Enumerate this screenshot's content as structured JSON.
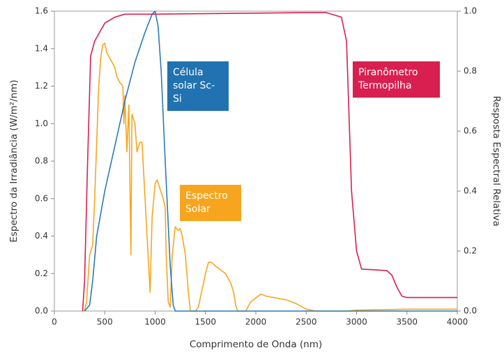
{
  "chart_data": {
    "type": "line",
    "xlabel": "Comprimento de Onda (nm)",
    "ylabel": "Espectro da Irradiância (W/m²/nm)",
    "y2label": "Resposta Espectral Relativa",
    "xlim": [
      0,
      4000
    ],
    "xticks": [
      0,
      500,
      1000,
      1500,
      2000,
      2500,
      3000,
      3500,
      4000
    ],
    "ylim": [
      0,
      1.6
    ],
    "yticks": [
      {
        "value": 0,
        "label": "0.0"
      },
      0.2,
      0.4,
      0.6,
      0.8,
      {
        "value": 1,
        "label": "1.0"
      },
      1.2,
      1.4,
      1.6
    ],
    "y2lim": [
      0,
      1
    ],
    "y2ticks": [
      {
        "value": 0,
        "label": "0.0"
      },
      0.2,
      0.4,
      0.6,
      0.8,
      {
        "value": 1,
        "label": "1.0"
      }
    ],
    "series": [
      {
        "name": "Espectro Solar",
        "color": "#f7a51e",
        "x": [
          280,
          300,
          320,
          350,
          380,
          400,
          420,
          440,
          460,
          480,
          500,
          520,
          550,
          580,
          600,
          620,
          650,
          680,
          690,
          700,
          720,
          740,
          760,
          770,
          800,
          820,
          850,
          870,
          900,
          930,
          950,
          970,
          1000,
          1020,
          1050,
          1080,
          1100,
          1110,
          1130,
          1150,
          1170,
          1200,
          1230,
          1250,
          1270,
          1300,
          1330,
          1350,
          1400,
          1430,
          1460,
          1500,
          1530,
          1560,
          1600,
          1650,
          1700,
          1750,
          1780,
          1800,
          1820,
          1900,
          1950,
          2000,
          2050,
          2100,
          2200,
          2300,
          2400,
          2500,
          2600,
          2900,
          3000,
          3500,
          4000
        ],
        "values": [
          0,
          0,
          0.05,
          0.3,
          0.35,
          0.6,
          0.9,
          1.2,
          1.35,
          1.42,
          1.43,
          1.38,
          1.35,
          1.32,
          1.3,
          1.25,
          1.22,
          1.2,
          1.0,
          1.15,
          0.85,
          1.1,
          0.3,
          1.05,
          1.0,
          0.85,
          0.9,
          0.9,
          0.6,
          0.3,
          0.1,
          0.5,
          0.68,
          0.7,
          0.65,
          0.6,
          0.55,
          0.3,
          0.05,
          0.02,
          0.3,
          0.45,
          0.43,
          0.44,
          0.4,
          0.3,
          0.1,
          0,
          0,
          0.02,
          0.1,
          0.2,
          0.26,
          0.26,
          0.24,
          0.22,
          0.2,
          0.15,
          0.1,
          0.03,
          0,
          0,
          0.05,
          0.07,
          0.09,
          0.08,
          0.07,
          0.06,
          0.04,
          0.01,
          0,
          0,
          0.005,
          0.01,
          0.01
        ]
      },
      {
        "name": "Célula solar Sc-Si",
        "color": "#2a7ab5",
        "axis": "y2",
        "x": [
          300,
          350,
          380,
          420,
          500,
          600,
          700,
          800,
          900,
          970,
          1000,
          1030,
          1060,
          1100,
          1150,
          1180,
          1200,
          4000
        ],
        "values": [
          0,
          0.02,
          0.1,
          0.25,
          0.4,
          0.55,
          0.7,
          0.83,
          0.93,
          0.99,
          1.0,
          0.95,
          0.8,
          0.5,
          0.15,
          0.02,
          0,
          0
        ]
      },
      {
        "name": "Piranômetro Termopilha",
        "color": "#d81f4f",
        "axis": "y2",
        "x": [
          280,
          300,
          330,
          360,
          400,
          450,
          500,
          600,
          700,
          1000,
          2500,
          2700,
          2850,
          2900,
          2950,
          3000,
          3050,
          3300,
          3350,
          3400,
          3450,
          3500,
          4000
        ],
        "values": [
          0,
          0.1,
          0.5,
          0.85,
          0.9,
          0.93,
          0.96,
          0.98,
          0.99,
          0.99,
          0.995,
          0.995,
          0.98,
          0.9,
          0.4,
          0.2,
          0.14,
          0.135,
          0.12,
          0.08,
          0.05,
          0.045,
          0.045
        ]
      }
    ]
  }
}
